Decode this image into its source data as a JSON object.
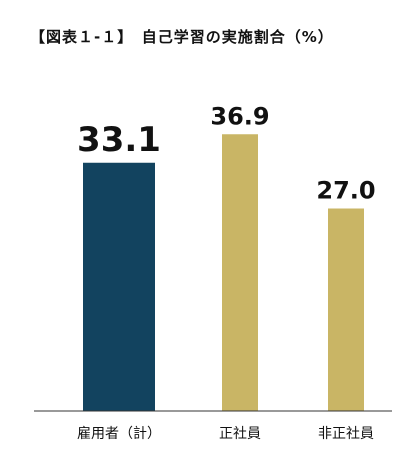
{
  "chart_data": {
    "type": "bar",
    "title": "【図表１-１】　自己学習の実施割合（%）",
    "categories": [
      "雇用者（計）",
      "正社員",
      "非正社員"
    ],
    "values": [
      33.1,
      36.9,
      27.0
    ],
    "value_labels": [
      "33.1",
      "36.9",
      "27.0"
    ],
    "highlight_index": 0,
    "colors": {
      "highlight": "#12435f",
      "default": "#c9b565",
      "axis": "#333333"
    },
    "ylim": [
      0,
      40
    ],
    "grid": false,
    "legend": "none"
  }
}
